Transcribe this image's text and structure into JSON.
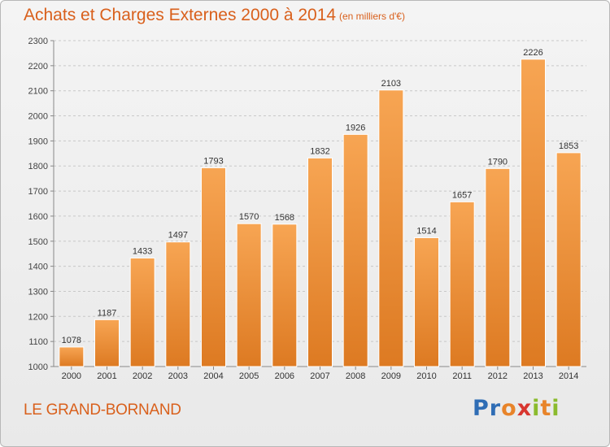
{
  "title": "Achats et Charges Externes 2000 à 2014",
  "subtitle": "(en milliers d'€)",
  "commune": "LE GRAND-BORNAND",
  "logo": {
    "text": "Proxiti",
    "letters": [
      "P",
      "r",
      "o",
      "x",
      "i",
      "t",
      "i"
    ]
  },
  "colors": {
    "accent": "#d9601c",
    "bar_top": "#f7a553",
    "bar_bottom": "#dd7a22",
    "logo": [
      "#2f6db5",
      "#2f6db5",
      "#e8842a",
      "#d8362f",
      "#8bbb2e",
      "#e8842a",
      "#8bbb2e"
    ]
  },
  "chart_data": {
    "type": "bar",
    "categories": [
      "2000",
      "2001",
      "2002",
      "2003",
      "2004",
      "2005",
      "2006",
      "2007",
      "2008",
      "2009",
      "2010",
      "2011",
      "2012",
      "2013",
      "2014"
    ],
    "values": [
      1078,
      1187,
      1433,
      1497,
      1793,
      1570,
      1568,
      1832,
      1926,
      2103,
      1514,
      1657,
      1790,
      2226,
      1853
    ],
    "ylim": [
      1000,
      2300
    ],
    "yticks": [
      1000,
      1100,
      1200,
      1300,
      1400,
      1500,
      1600,
      1700,
      1800,
      1900,
      2000,
      2100,
      2200,
      2300
    ],
    "grid": true,
    "title": "Achats et Charges Externes 2000 à 2014",
    "xlabel": "",
    "ylabel": ""
  }
}
